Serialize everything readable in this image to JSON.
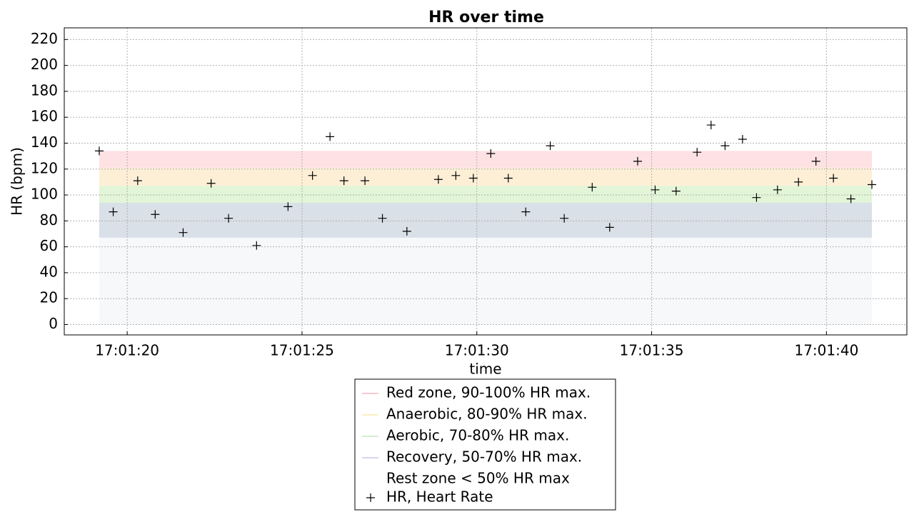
{
  "chart_data": {
    "type": "scatter",
    "title": "HR over time",
    "xlabel": "time",
    "ylabel": "HR (bpm)",
    "xlim": [
      "17:01:18.2",
      "17:01:42.3"
    ],
    "xticks": [
      "17:01:20",
      "17:01:25",
      "17:01:30",
      "17:01:35",
      "17:01:40"
    ],
    "ylim": [
      -8,
      229
    ],
    "yticks": [
      0,
      20,
      40,
      60,
      80,
      100,
      120,
      140,
      160,
      180,
      200,
      220
    ],
    "grid": true,
    "legend": "below",
    "zones": [
      {
        "name": "Red zone, 90-100% HR max.",
        "range": [
          121,
          134
        ],
        "color": "#fde1e3",
        "line_color": "#f9c9cf"
      },
      {
        "name": "Anaerobic, 80-90% HR max.",
        "range": [
          107,
          121
        ],
        "color": "#fdefd6",
        "line_color": "#f8f1c4"
      },
      {
        "name": "Aerobic, 70-80% HR max.",
        "range": [
          94,
          107
        ],
        "color": "#e2f5d7",
        "line_color": "#d5efd0"
      },
      {
        "name": "Recovery, 50-70% HR max.",
        "range": [
          67,
          94
        ],
        "color": "#d9e0e8",
        "line_color": "#d6d6ef"
      },
      {
        "name": "Rest zone < 50% HR max",
        "range": [
          0,
          67
        ],
        "color": "#f6f8fa",
        "line_color": "#ffffff"
      }
    ],
    "series": [
      {
        "name": "HR, Heart Rate",
        "color": "#000000",
        "x": [
          "17:01:19.2",
          "17:01:19.6",
          "17:01:20.3",
          "17:01:20.8",
          "17:01:21.6",
          "17:01:22.4",
          "17:01:22.9",
          "17:01:23.7",
          "17:01:24.6",
          "17:01:25.3",
          "17:01:25.8",
          "17:01:26.2",
          "17:01:26.8",
          "17:01:27.3",
          "17:01:28.0",
          "17:01:28.9",
          "17:01:29.4",
          "17:01:29.9",
          "17:01:30.4",
          "17:01:30.9",
          "17:01:31.4",
          "17:01:32.1",
          "17:01:32.5",
          "17:01:33.3",
          "17:01:33.8",
          "17:01:34.6",
          "17:01:35.1",
          "17:01:35.7",
          "17:01:36.3",
          "17:01:36.7",
          "17:01:37.1",
          "17:01:37.6",
          "17:01:38.0",
          "17:01:38.6",
          "17:01:39.2",
          "17:01:39.7",
          "17:01:40.2",
          "17:01:40.7",
          "17:01:41.3"
        ],
        "values": [
          134,
          87,
          111,
          85,
          71,
          109,
          82,
          61,
          91,
          115,
          145,
          111,
          111,
          82,
          72,
          112,
          115,
          113,
          132,
          113,
          87,
          138,
          82,
          106,
          75,
          126,
          104,
          103,
          133,
          154,
          138,
          143,
          98,
          104,
          110,
          126,
          113,
          97,
          108
        ]
      }
    ]
  }
}
